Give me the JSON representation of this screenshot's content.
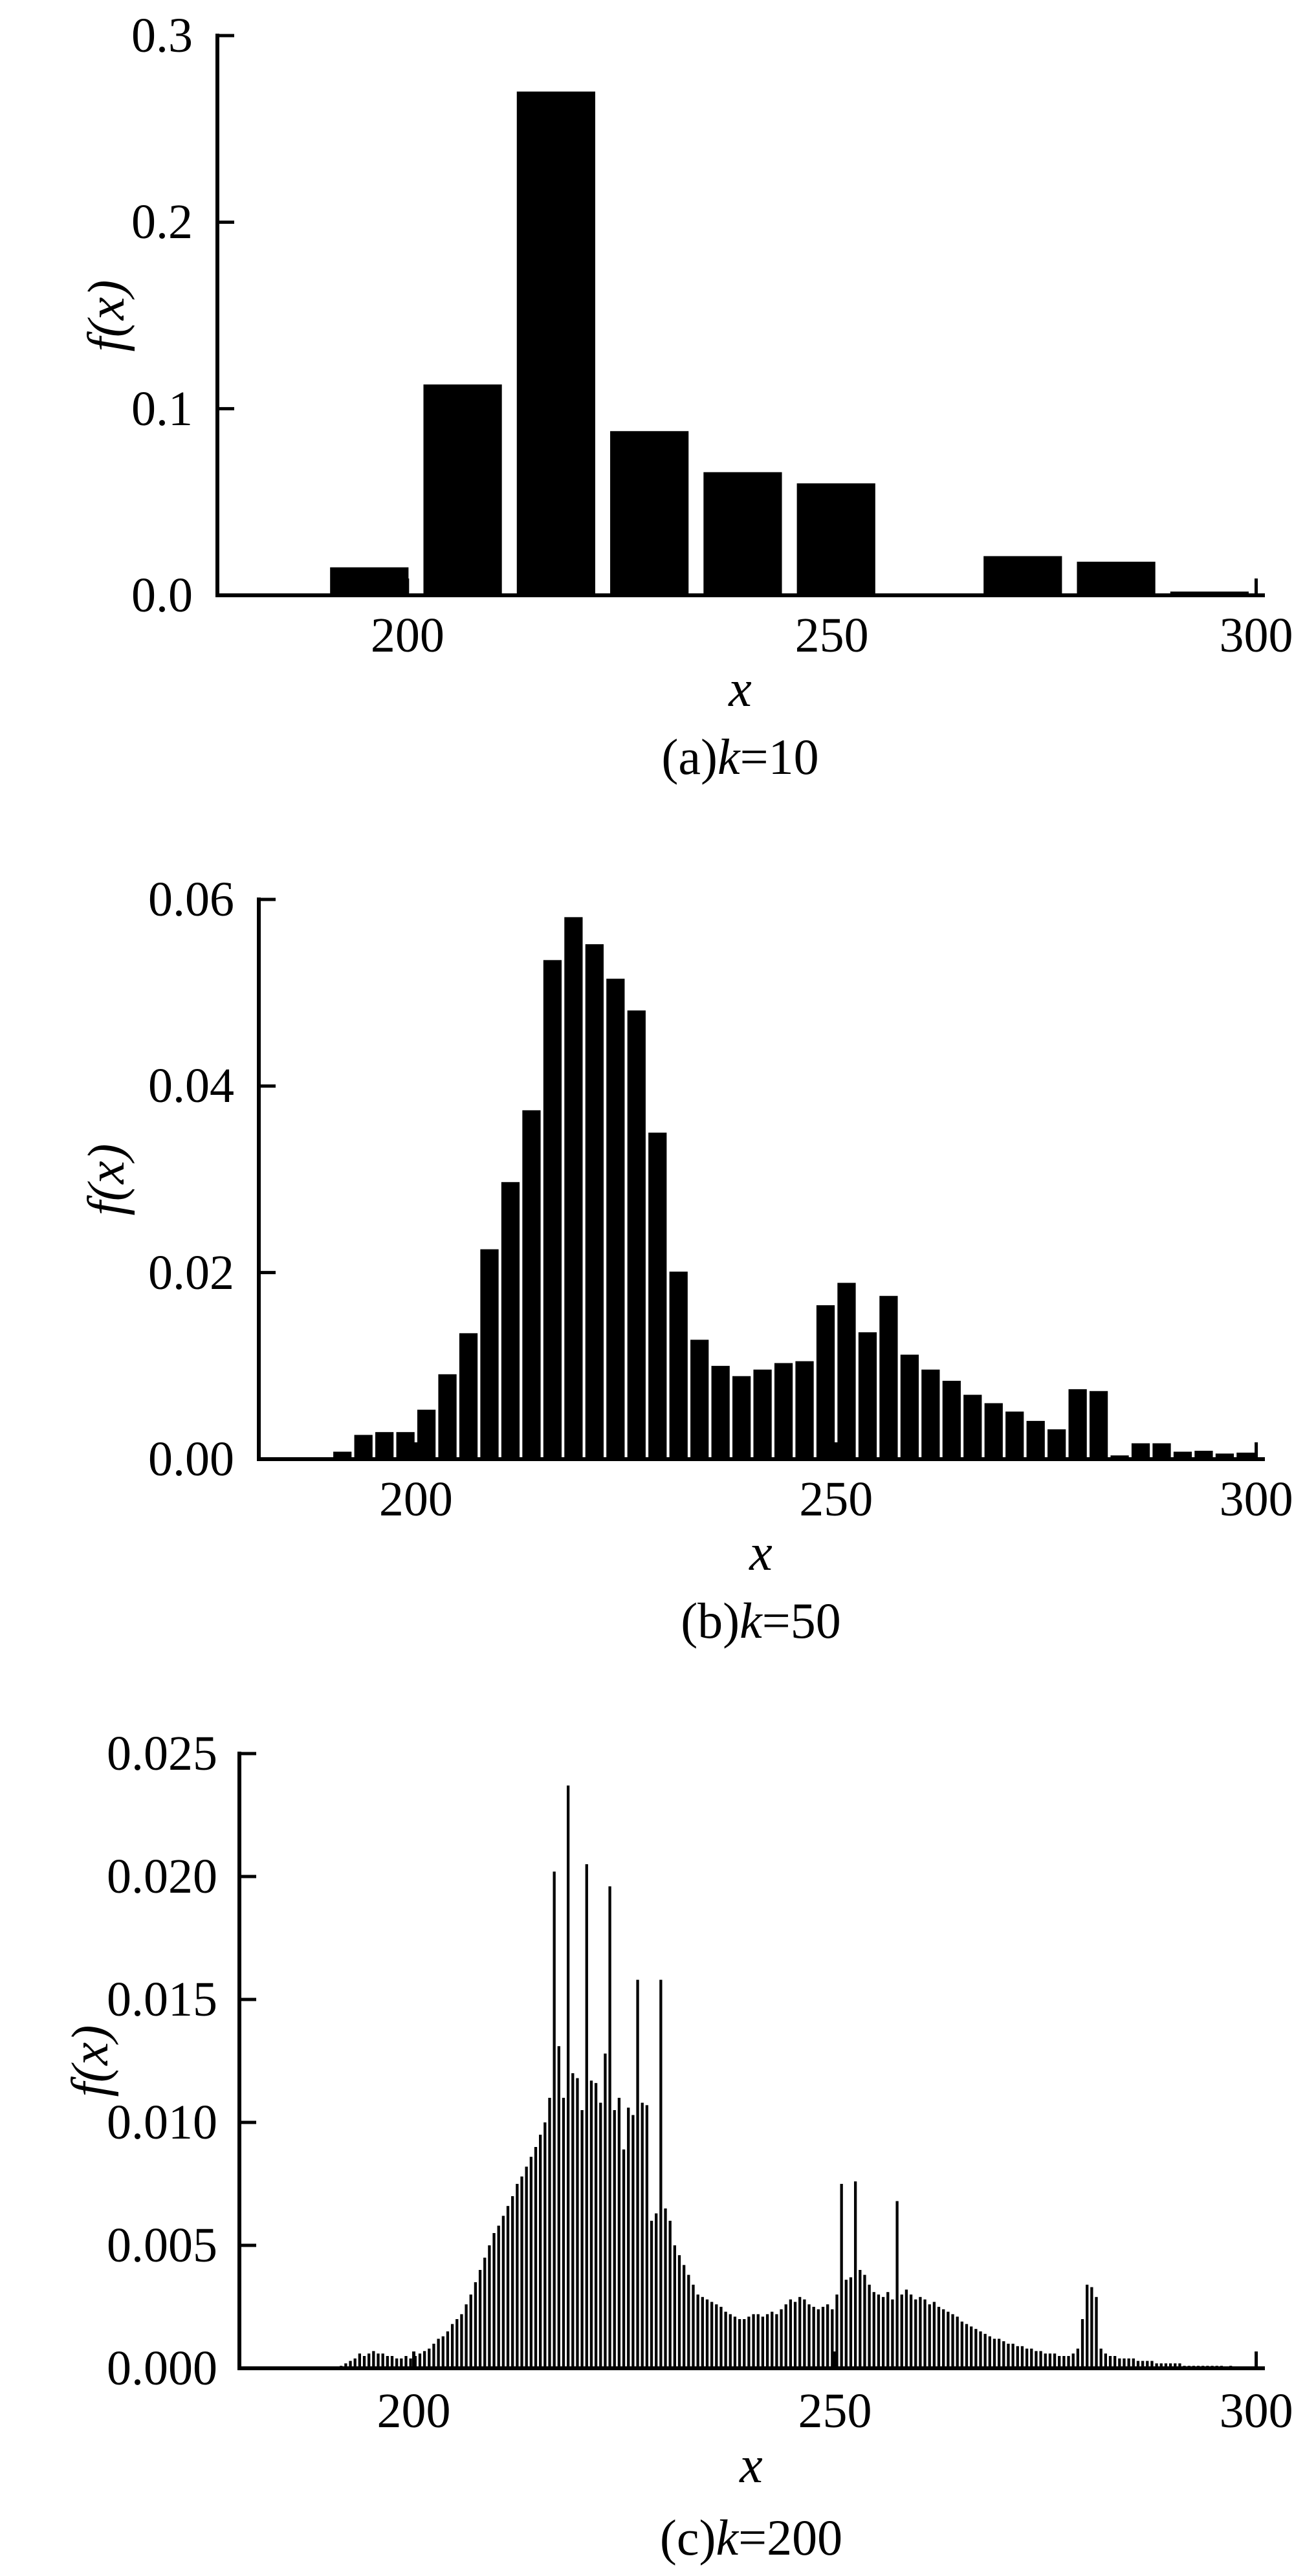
{
  "figure": {
    "background": "#ffffff",
    "bar_color": "#000000",
    "axis_color": "#000000",
    "text_color": "#1a1a1a"
  },
  "chart_data": [
    {
      "id": "a",
      "type": "bar",
      "title": "(a)k=10",
      "caption": {
        "prefix": "(a)",
        "k": "k",
        "suffix": "=10"
      },
      "xlabel": "x",
      "ylabel": "f(x)",
      "legend": "none",
      "grid": false,
      "xlim": [
        177.6,
        300.8
      ],
      "ylim": [
        0,
        0.3
      ],
      "xticks": [
        {
          "v": 200,
          "label": "200"
        },
        {
          "v": 250,
          "label": "250"
        },
        {
          "v": 300,
          "label": "300"
        }
      ],
      "yticks": [
        {
          "v": 0,
          "label": "0.0"
        },
        {
          "v": 0.1,
          "label": "0.1"
        },
        {
          "v": 0.2,
          "label": "0.2"
        },
        {
          "v": 0.3,
          "label": "0.3"
        }
      ],
      "bins": {
        "start": 190,
        "width": 11
      },
      "bar_rel_width": 0.84,
      "values": [
        0.015,
        0.113,
        0.27,
        0.088,
        0.066,
        0.06,
        0,
        0.021,
        0.018,
        0.002
      ]
    },
    {
      "id": "b",
      "type": "bar",
      "title": "(b)k=50",
      "caption": {
        "prefix": "(b)",
        "k": "k",
        "suffix": "=50"
      },
      "xlabel": "x",
      "ylabel": "f(x)",
      "legend": "none",
      "grid": false,
      "xlim": [
        181.3,
        300.8
      ],
      "ylim": [
        0,
        0.06
      ],
      "xticks": [
        {
          "v": 200,
          "label": "200"
        },
        {
          "v": 250,
          "label": "250"
        },
        {
          "v": 300,
          "label": "300"
        }
      ],
      "yticks": [
        {
          "v": 0,
          "label": "0.00"
        },
        {
          "v": 0.02,
          "label": "0.02"
        },
        {
          "v": 0.04,
          "label": "0.04"
        },
        {
          "v": 0.06,
          "label": "0.06"
        }
      ],
      "bins": {
        "start": 190,
        "width": 2.5
      },
      "bar_rel_width": 0.87,
      "values": [
        0.0008,
        0.0026,
        0.0029,
        0.0029,
        0.0053,
        0.0091,
        0.0135,
        0.0225,
        0.0297,
        0.0374,
        0.0535,
        0.0581,
        0.0552,
        0.0515,
        0.0481,
        0.035,
        0.0201,
        0.0128,
        0.01,
        0.0089,
        0.0096,
        0.0103,
        0.0105,
        0.0165,
        0.0189,
        0.0136,
        0.0175,
        0.0112,
        0.0096,
        0.0084,
        0.0069,
        0.006,
        0.0051,
        0.0041,
        0.0032,
        0.0075,
        0.0073,
        0.0004,
        0.0017,
        0.0017,
        0.0008,
        0.0009,
        0.0006,
        0.0007
      ]
    },
    {
      "id": "c",
      "type": "bar",
      "title": "(c)k=200",
      "caption": {
        "prefix": "(c)",
        "k": "k",
        "suffix": "=200"
      },
      "xlabel": "x",
      "ylabel": "f(x)",
      "legend": "none",
      "grid": false,
      "xlim": [
        179.3,
        300.8
      ],
      "ylim": [
        0,
        0.025
      ],
      "xticks": [
        {
          "v": 200,
          "label": "200"
        },
        {
          "v": 250,
          "label": "250"
        },
        {
          "v": 300,
          "label": "300"
        }
      ],
      "yticks": [
        {
          "v": 0,
          "label": "0.000"
        },
        {
          "v": 0.005,
          "label": "0.005"
        },
        {
          "v": 0.01,
          "label": "0.010"
        },
        {
          "v": 0.015,
          "label": "0.015"
        },
        {
          "v": 0.02,
          "label": "0.020"
        },
        {
          "v": 0.025,
          "label": "0.025"
        }
      ],
      "bins": {
        "start": 190,
        "width": 0.55
      },
      "bar_rel_width": 0.6,
      "values": [
        0,
        0,
        0.0001,
        0.0002,
        0.0003,
        0.0004,
        0.0006,
        0.0005,
        0.0006,
        0.0007,
        0.0006,
        0.0006,
        0.0005,
        0.0005,
        0.0004,
        0.0004,
        0.0005,
        0.0004,
        0.0005,
        0.0006,
        0.0007,
        0.0008,
        0.001,
        0.0012,
        0.0013,
        0.0015,
        0.0018,
        0.002,
        0.0022,
        0.0026,
        0.003,
        0.0035,
        0.004,
        0.0045,
        0.005,
        0.0055,
        0.0058,
        0.0062,
        0.0066,
        0.007,
        0.0075,
        0.0078,
        0.0082,
        0.0086,
        0.009,
        0.0095,
        0.01,
        0.011,
        0.0202,
        0.0131,
        0.011,
        0.0237,
        0.012,
        0.0118,
        0.0105,
        0.0205,
        0.0117,
        0.0116,
        0.0108,
        0.0128,
        0.0196,
        0.0105,
        0.011,
        0.0089,
        0.0106,
        0.0103,
        0.0158,
        0.0108,
        0.0107,
        0.006,
        0.0063,
        0.0158,
        0.0065,
        0.006,
        0.005,
        0.0046,
        0.0042,
        0.0038,
        0.0034,
        0.003,
        0.0029,
        0.0028,
        0.0027,
        0.0026,
        0.0025,
        0.0023,
        0.0022,
        0.0021,
        0.002,
        0.002,
        0.0021,
        0.0022,
        0.0022,
        0.0021,
        0.0022,
        0.0023,
        0.0022,
        0.0024,
        0.0026,
        0.0028,
        0.0027,
        0.0029,
        0.0028,
        0.0026,
        0.0025,
        0.0024,
        0.0025,
        0.0026,
        0.0024,
        0.003,
        0.0075,
        0.0036,
        0.0037,
        0.0076,
        0.004,
        0.0038,
        0.0034,
        0.0031,
        0.003,
        0.0029,
        0.0031,
        0.0028,
        0.0068,
        0.003,
        0.0032,
        0.003,
        0.0028,
        0.0029,
        0.0028,
        0.0026,
        0.0027,
        0.0025,
        0.0024,
        0.0023,
        0.0022,
        0.0021,
        0.0019,
        0.0018,
        0.0017,
        0.0016,
        0.0015,
        0.0014,
        0.0013,
        0.0012,
        0.0012,
        0.0011,
        0.001,
        0.001,
        0.0009,
        0.0009,
        0.0008,
        0.0008,
        0.0007,
        0.0007,
        0.0006,
        0.0006,
        0.0006,
        0.0005,
        0.0005,
        0.0005,
        0.0006,
        0.0008,
        0.002,
        0.0034,
        0.0033,
        0.0029,
        0.0008,
        0.0006,
        0.0005,
        0.0005,
        0.0004,
        0.0004,
        0.0004,
        0.0004,
        0.0003,
        0.0003,
        0.0003,
        0.0003,
        0.0002,
        0.0002,
        0.0002,
        0.0002,
        0.0002,
        0.0002,
        0.0001,
        0.0001,
        0.0001,
        0.0001,
        0.0001,
        0.0001,
        0.0001,
        0.0001,
        0.0001,
        0,
        0.0001,
        0,
        0,
        0,
        0,
        0
      ]
    }
  ]
}
